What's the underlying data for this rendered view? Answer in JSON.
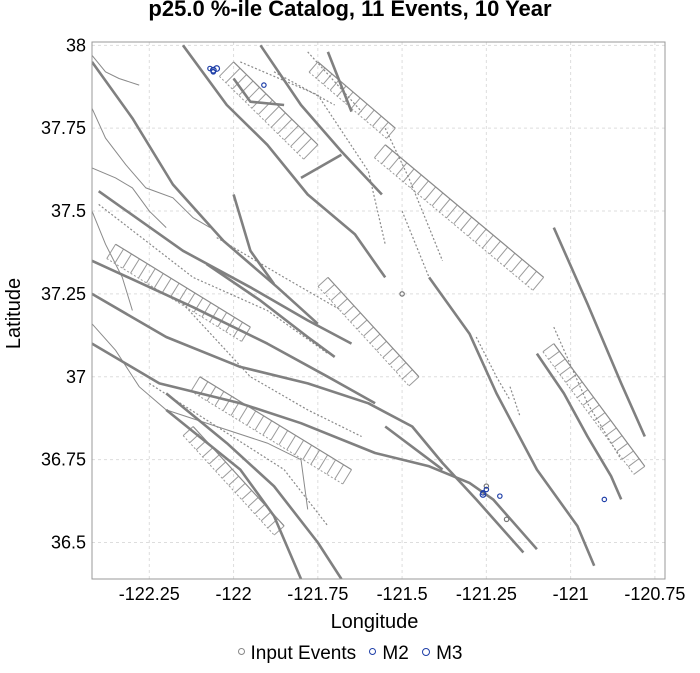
{
  "chart_data": {
    "type": "scatter",
    "title": "p25.0 %-ile Catalog, 11 Events, 10 Year",
    "xlabel": "Longitude",
    "ylabel": "Latitude",
    "xlim": [
      -122.42,
      -120.72
    ],
    "ylim": [
      36.39,
      38.01
    ],
    "xticks": [
      "-122.25",
      "-122",
      "-121.75",
      "-121.5",
      "-121.25",
      "-121",
      "-120.75"
    ],
    "xtick_values": [
      -122.25,
      -122.0,
      -121.75,
      -121.5,
      -121.25,
      -121.0,
      -120.75
    ],
    "yticks": [
      "38",
      "37.75",
      "37.5",
      "37.25",
      "37",
      "36.75",
      "36.5"
    ],
    "ytick_values": [
      38.0,
      37.75,
      37.5,
      37.25,
      37.0,
      36.75,
      36.5
    ],
    "grid": true,
    "legend_position": "bottom-center",
    "series": [
      {
        "name": "Input Events",
        "color": "#777777",
        "points": [
          {
            "x": -121.5,
            "y": 37.25
          },
          {
            "x": -121.25,
            "y": 36.67
          },
          {
            "x": -121.19,
            "y": 36.57
          }
        ]
      },
      {
        "name": "M2",
        "color": "#1f3fa8",
        "points": [
          {
            "x": -122.07,
            "y": 37.93
          },
          {
            "x": -122.06,
            "y": 37.92
          },
          {
            "x": -121.91,
            "y": 37.88
          },
          {
            "x": -121.26,
            "y": 36.65
          },
          {
            "x": -121.25,
            "y": 36.66
          },
          {
            "x": -121.21,
            "y": 36.64
          },
          {
            "x": -120.9,
            "y": 36.63
          }
        ]
      },
      {
        "name": "M3",
        "color": "#1f3fa8",
        "points": [
          {
            "x": -122.06,
            "y": 37.925
          },
          {
            "x": -122.05,
            "y": 37.93
          },
          {
            "x": -121.26,
            "y": 36.645
          }
        ]
      }
    ],
    "background_faults": {
      "color": "#808080",
      "solid": [
        [
          [
            -122.42,
            37.95
          ],
          [
            -122.3,
            37.78
          ],
          [
            -122.18,
            37.58
          ],
          [
            -122.03,
            37.41
          ],
          [
            -121.87,
            37.27
          ],
          [
            -121.75,
            37.16
          ]
        ],
        [
          [
            -122.15,
            38.0
          ],
          [
            -122.02,
            37.82
          ],
          [
            -121.9,
            37.7
          ],
          [
            -121.78,
            37.55
          ],
          [
            -121.64,
            37.43
          ],
          [
            -121.55,
            37.3
          ]
        ],
        [
          [
            -122.42,
            37.1
          ],
          [
            -122.22,
            36.98
          ],
          [
            -121.98,
            36.92
          ],
          [
            -121.8,
            36.86
          ],
          [
            -121.58,
            36.77
          ],
          [
            -121.42,
            36.73
          ],
          [
            -121.3,
            36.68
          ],
          [
            -121.23,
            36.63
          ],
          [
            -121.1,
            36.48
          ]
        ],
        [
          [
            -122.42,
            37.25
          ],
          [
            -122.2,
            37.12
          ],
          [
            -121.98,
            37.03
          ],
          [
            -121.78,
            36.98
          ],
          [
            -121.6,
            36.92
          ],
          [
            -121.47,
            36.85
          ],
          [
            -121.38,
            36.74
          ],
          [
            -121.28,
            36.63
          ],
          [
            -121.14,
            36.47
          ]
        ],
        [
          [
            -122.42,
            37.35
          ],
          [
            -122.12,
            37.21
          ],
          [
            -121.9,
            37.1
          ],
          [
            -121.72,
            37.0
          ],
          [
            -121.58,
            36.92
          ]
        ],
        [
          [
            -122.2,
            36.95
          ],
          [
            -122.02,
            36.8
          ],
          [
            -121.88,
            36.67
          ],
          [
            -121.75,
            36.5
          ],
          [
            -121.68,
            36.39
          ]
        ],
        [
          [
            -122.2,
            36.9
          ],
          [
            -121.98,
            36.72
          ],
          [
            -121.88,
            36.58
          ],
          [
            -121.8,
            36.39
          ]
        ],
        [
          [
            -122.4,
            37.56
          ],
          [
            -122.15,
            37.38
          ],
          [
            -121.95,
            37.27
          ],
          [
            -121.78,
            37.17
          ],
          [
            -121.65,
            37.1
          ]
        ],
        [
          [
            -122.08,
            37.34
          ],
          [
            -121.92,
            37.23
          ],
          [
            -121.78,
            37.12
          ],
          [
            -121.7,
            37.06
          ]
        ],
        [
          [
            -122.0,
            37.55
          ],
          [
            -121.95,
            37.38
          ],
          [
            -121.88,
            37.28
          ]
        ],
        [
          [
            -122.0,
            37.9
          ],
          [
            -121.95,
            37.83
          ],
          [
            -121.85,
            37.82
          ]
        ],
        [
          [
            -121.8,
            37.6
          ],
          [
            -121.68,
            37.67
          ]
        ],
        [
          [
            -121.72,
            37.98
          ],
          [
            -121.65,
            37.8
          ]
        ],
        [
          [
            -121.92,
            38.0
          ],
          [
            -121.8,
            37.82
          ],
          [
            -121.68,
            37.68
          ],
          [
            -121.56,
            37.55
          ]
        ],
        [
          [
            -121.55,
            36.85
          ],
          [
            -121.38,
            36.72
          ]
        ],
        [
          [
            -121.42,
            37.3
          ],
          [
            -121.3,
            37.13
          ],
          [
            -121.22,
            36.95
          ],
          [
            -121.1,
            36.72
          ],
          [
            -120.98,
            36.55
          ],
          [
            -120.93,
            36.43
          ]
        ],
        [
          [
            -121.1,
            37.07
          ],
          [
            -121.02,
            36.95
          ],
          [
            -120.95,
            36.82
          ],
          [
            -120.88,
            36.7
          ],
          [
            -120.85,
            36.63
          ]
        ],
        [
          [
            -121.05,
            37.45
          ],
          [
            -120.95,
            37.22
          ],
          [
            -120.85,
            36.98
          ],
          [
            -120.78,
            36.82
          ]
        ]
      ],
      "dashed": [
        [
          [
            -122.4,
            37.52
          ],
          [
            -122.12,
            37.3
          ],
          [
            -121.9,
            37.2
          ],
          [
            -121.72,
            37.07
          ]
        ],
        [
          [
            -122.05,
            37.42
          ],
          [
            -121.85,
            37.3
          ],
          [
            -121.68,
            37.2
          ]
        ],
        [
          [
            -121.98,
            37.95
          ],
          [
            -121.75,
            37.85
          ],
          [
            -121.6,
            37.62
          ],
          [
            -121.55,
            37.4
          ]
        ],
        [
          [
            -121.88,
            37.92
          ],
          [
            -121.7,
            37.82
          ]
        ],
        [
          [
            -121.78,
            37.98
          ],
          [
            -121.62,
            37.8
          ]
        ],
        [
          [
            -122.25,
            36.98
          ],
          [
            -122.05,
            36.85
          ],
          [
            -121.85,
            36.72
          ],
          [
            -121.72,
            36.55
          ]
        ],
        [
          [
            -122.15,
            37.22
          ],
          [
            -121.95,
            37.0
          ],
          [
            -121.78,
            36.9
          ],
          [
            -121.62,
            36.82
          ]
        ],
        [
          [
            -121.55,
            37.75
          ],
          [
            -121.48,
            37.6
          ],
          [
            -121.42,
            37.45
          ],
          [
            -121.38,
            37.35
          ]
        ],
        [
          [
            -121.5,
            37.5
          ],
          [
            -121.42,
            37.3
          ],
          [
            -121.35,
            37.2
          ]
        ],
        [
          [
            -121.05,
            37.15
          ],
          [
            -120.95,
            36.92
          ],
          [
            -120.85,
            36.75
          ]
        ],
        [
          [
            -121.18,
            36.97
          ],
          [
            -121.15,
            36.88
          ]
        ],
        [
          [
            -121.28,
            37.12
          ],
          [
            -121.22,
            37.0
          ],
          [
            -121.18,
            36.93
          ]
        ]
      ],
      "hatched": [
        {
          "from": [
            -121.55,
            37.7
          ],
          "to": [
            -121.08,
            37.3
          ],
          "width": 0.05
        },
        {
          "from": [
            -121.05,
            37.1
          ],
          "to": [
            -120.78,
            36.73
          ],
          "width": 0.04
        },
        {
          "from": [
            -122.0,
            37.95
          ],
          "to": [
            -121.75,
            37.7
          ],
          "width": 0.06
        },
        {
          "from": [
            -122.35,
            37.4
          ],
          "to": [
            -121.95,
            37.15
          ],
          "width": 0.05
        },
        {
          "from": [
            -122.1,
            37.0
          ],
          "to": [
            -121.65,
            36.72
          ],
          "width": 0.05
        },
        {
          "from": [
            -122.12,
            36.85
          ],
          "to": [
            -121.85,
            36.55
          ],
          "width": 0.04
        },
        {
          "from": [
            -121.75,
            37.95
          ],
          "to": [
            -121.52,
            37.75
          ],
          "width": 0.04
        },
        {
          "from": [
            -121.72,
            37.3
          ],
          "to": [
            -121.45,
            37.0
          ],
          "width": 0.04
        }
      ],
      "coastline": [
        [
          [
            -122.42,
            37.81
          ],
          [
            -122.38,
            37.72
          ],
          [
            -122.32,
            37.64
          ],
          [
            -122.26,
            37.57
          ],
          [
            -122.18,
            37.54
          ],
          [
            -122.12,
            37.48
          ],
          [
            -122.07,
            37.45
          ]
        ],
        [
          [
            -122.42,
            37.63
          ],
          [
            -122.35,
            37.6
          ],
          [
            -122.3,
            37.57
          ],
          [
            -122.25,
            37.5
          ],
          [
            -122.2,
            37.45
          ]
        ],
        [
          [
            -122.42,
            37.5
          ],
          [
            -122.38,
            37.4
          ],
          [
            -122.33,
            37.3
          ],
          [
            -122.3,
            37.2
          ]
        ],
        [
          [
            -122.42,
            37.16
          ],
          [
            -122.35,
            37.08
          ],
          [
            -122.28,
            36.97
          ],
          [
            -122.2,
            36.9
          ],
          [
            -122.05,
            36.85
          ],
          [
            -121.9,
            36.8
          ],
          [
            -121.8,
            36.75
          ],
          [
            -121.78,
            36.6
          ]
        ],
        [
          [
            -122.42,
            37.97
          ],
          [
            -122.38,
            37.92
          ],
          [
            -122.34,
            37.9
          ],
          [
            -122.28,
            37.88
          ]
        ]
      ]
    }
  },
  "legend": {
    "items": [
      {
        "label": "Input Events",
        "color": "#888888"
      },
      {
        "label": "M2",
        "color": "#1f3fa8"
      },
      {
        "label": "M3",
        "color": "#1f3fa8"
      }
    ]
  }
}
